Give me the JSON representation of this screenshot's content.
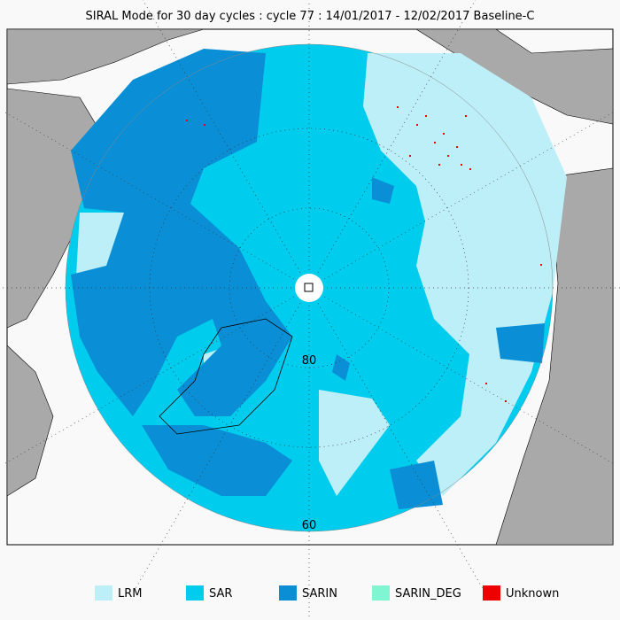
{
  "header": {
    "title": "SIRAL Mode for 30 day cycles : cycle 77 : 14/01/2017 - 12/02/2017 Baseline-C"
  },
  "map": {
    "latitude_labels": [
      "80",
      "60"
    ]
  },
  "legend": [
    {
      "label": "LRM",
      "color": "#bdeff8"
    },
    {
      "label": "SAR",
      "color": "#00ccee"
    },
    {
      "label": "SARIN",
      "color": "#0a8fd6"
    },
    {
      "label": "SARIN_DEG",
      "color": "#7ff5d2"
    },
    {
      "label": "Unknown",
      "color": "#ee0000"
    }
  ]
}
